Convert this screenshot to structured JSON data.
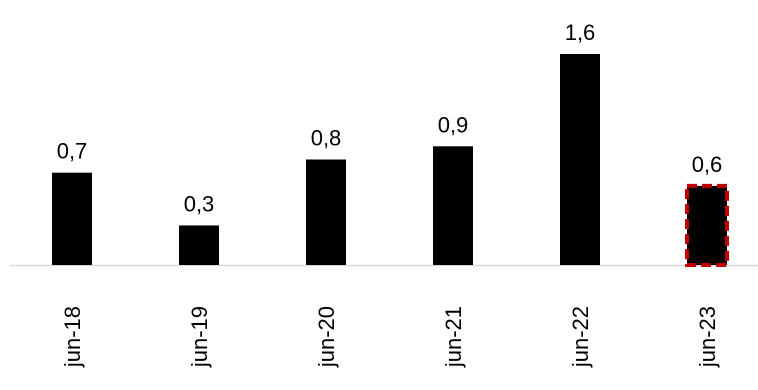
{
  "chart_data": {
    "type": "bar",
    "categories": [
      "jun-18",
      "jun-19",
      "jun-20",
      "jun-21",
      "jun-22",
      "jun-23"
    ],
    "values": [
      0.7,
      0.3,
      0.8,
      0.9,
      1.6,
      0.6
    ],
    "value_labels": [
      "0,7",
      "0,3",
      "0,8",
      "0,9",
      "1,6",
      "0,6"
    ],
    "highlighted_index": 5,
    "title": "",
    "xlabel": "",
    "ylabel": "",
    "ylim": [
      0,
      1.6
    ],
    "grid": false,
    "colors": {
      "bar": "#000000",
      "highlight_border": "#c00000",
      "axis": "#d9d9d9"
    }
  }
}
